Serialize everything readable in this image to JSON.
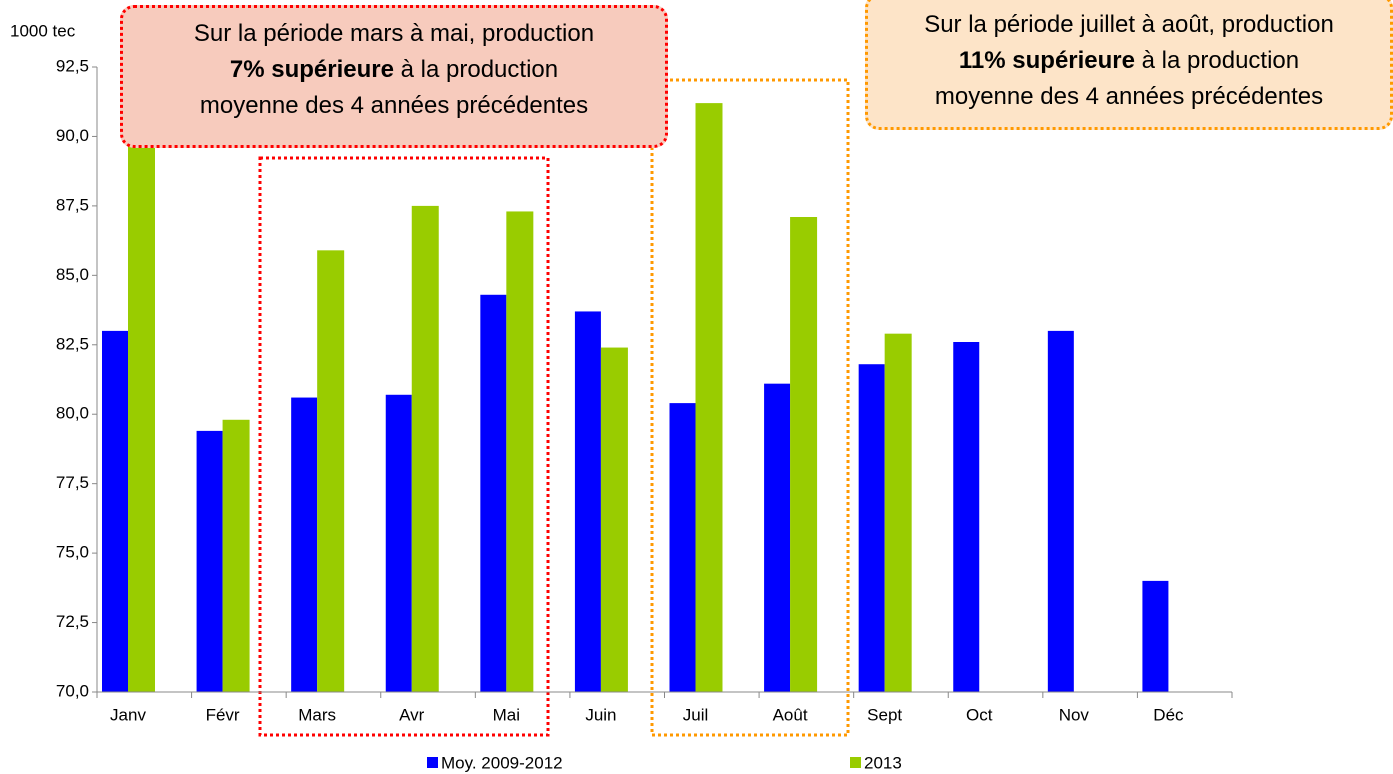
{
  "chart_data": {
    "type": "bar",
    "y_axis_label": "1000 tec",
    "categories": [
      "Janv",
      "Févr",
      "Mars",
      "Avr",
      "Mai",
      "Juin",
      "Juil",
      "Août",
      "Sept",
      "Oct",
      "Nov",
      "Déc"
    ],
    "series": [
      {
        "name": "Moy. 2009-2012",
        "color": "#0000ff",
        "values": [
          83.0,
          79.4,
          80.6,
          80.7,
          84.3,
          83.7,
          80.4,
          81.1,
          81.8,
          82.6,
          83.0,
          74.0
        ]
      },
      {
        "name": "2013",
        "color": "#99cc00",
        "values": [
          90.6,
          79.8,
          85.9,
          87.5,
          87.3,
          82.4,
          91.2,
          87.1,
          82.9,
          null,
          null,
          null
        ]
      }
    ],
    "ylim": [
      70,
      92.5
    ],
    "yticks": [
      {
        "value": 70,
        "label": "70,0"
      },
      {
        "value": 72.5,
        "label": "72,5"
      },
      {
        "value": 75,
        "label": "75,0"
      },
      {
        "value": 77.5,
        "label": "77,5"
      },
      {
        "value": 80,
        "label": "80,0"
      },
      {
        "value": 82.5,
        "label": "82,5"
      },
      {
        "value": 85,
        "label": "85,0"
      },
      {
        "value": 87.5,
        "label": "87,5"
      },
      {
        "value": 90,
        "label": "90,0"
      },
      {
        "value": 92.5,
        "label": "92,5"
      }
    ],
    "grid": false,
    "annotations": [
      {
        "lines": [
          "Sur la période mars à mai, production"
        ],
        "bold": "7% supérieure",
        "after_bold": " à la production",
        "last_line": "moyenne des 4 années précédentes"
      },
      {
        "lines": [
          "Sur la période juillet à août, production"
        ],
        "bold": "11% supérieure",
        "after_bold": " à la production",
        "last_line": "moyenne des 4 années précédentes"
      }
    ]
  }
}
